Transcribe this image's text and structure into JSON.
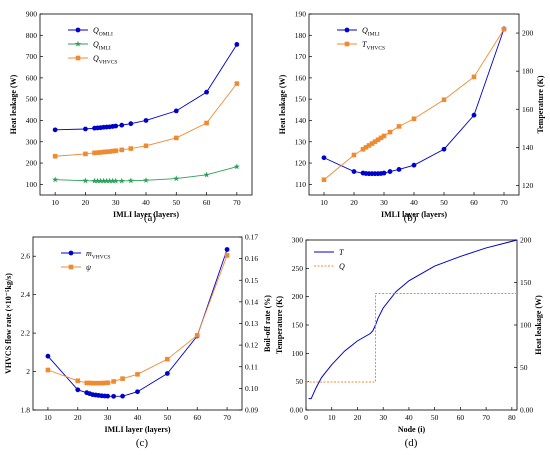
{
  "chart_data": [
    {
      "id": "a",
      "type": "line",
      "caption": "(a)",
      "xlabel": "IMLI layer (layers)",
      "ylabel": "Heat leakage (W)",
      "xlim": [
        5,
        75
      ],
      "ylim": [
        50,
        900
      ],
      "xticks": [
        10,
        20,
        30,
        40,
        50,
        60,
        70
      ],
      "yticks": [
        100,
        200,
        300,
        400,
        500,
        600,
        700,
        800,
        900
      ],
      "legend_position": "top-left",
      "series": [
        {
          "name": "Q",
          "sub": "OMLI",
          "axis": "left",
          "color": "#0000cc",
          "marker": "circle",
          "x": [
            10,
            20,
            23,
            24,
            25,
            26,
            27,
            28,
            29,
            30,
            32,
            35,
            40,
            50,
            60,
            70
          ],
          "y": [
            356,
            360,
            364,
            365,
            366,
            368,
            369,
            370,
            372,
            374,
            378,
            385,
            400,
            445,
            533,
            757
          ]
        },
        {
          "name": "Q",
          "sub": "IMLI",
          "axis": "left",
          "color": "#2ca05a",
          "marker": "star",
          "x": [
            10,
            20,
            23,
            24,
            25,
            26,
            27,
            28,
            29,
            30,
            32,
            35,
            40,
            50,
            60,
            70
          ],
          "y": [
            122,
            117,
            116,
            116,
            116,
            116,
            116,
            116,
            116,
            116,
            116,
            117,
            119,
            127,
            145,
            183
          ]
        },
        {
          "name": "Q",
          "sub": "VHVCS",
          "axis": "left",
          "color": "#f08a30",
          "marker": "square",
          "x": [
            10,
            20,
            23,
            24,
            25,
            26,
            27,
            28,
            29,
            30,
            32,
            35,
            40,
            50,
            60,
            70
          ],
          "y": [
            232,
            243,
            248,
            249,
            250,
            252,
            253,
            254,
            256,
            258,
            262,
            268,
            281,
            318,
            388,
            573
          ]
        }
      ]
    },
    {
      "id": "b",
      "type": "line",
      "caption": "(b)",
      "xlabel": "IMLI layer (layers)",
      "ylabel": "Heat leakage (W)",
      "ylabel_right": "Temperature (K)",
      "xlim": [
        5,
        75
      ],
      "ylim": [
        105,
        190
      ],
      "ylim_right": [
        115,
        210
      ],
      "xticks": [
        10,
        20,
        30,
        40,
        50,
        60,
        70
      ],
      "yticks": [
        110,
        120,
        130,
        140,
        150,
        160,
        170,
        180,
        190
      ],
      "yticks_right": [
        120,
        140,
        160,
        180,
        200
      ],
      "legend_position": "top-left",
      "series": [
        {
          "name": "Q",
          "sub": "IMLI",
          "axis": "left",
          "color": "#0000cc",
          "marker": "circle",
          "x": [
            10,
            20,
            23,
            24,
            25,
            26,
            27,
            28,
            29,
            30,
            32,
            35,
            40,
            50,
            60,
            70
          ],
          "y": [
            122.5,
            116,
            115.3,
            115.1,
            115,
            115,
            115,
            115,
            115.1,
            115.3,
            116,
            117,
            119,
            126.5,
            142.5,
            183
          ]
        },
        {
          "name": "T",
          "sub": "VHVCS",
          "axis": "right",
          "color": "#f08a30",
          "marker": "square",
          "x": [
            10,
            20,
            23,
            24,
            25,
            26,
            27,
            28,
            29,
            30,
            32,
            35,
            40,
            50,
            60,
            70
          ],
          "y": [
            123,
            136,
            139,
            140,
            141,
            142,
            143,
            144,
            145,
            146,
            148,
            151,
            155,
            165,
            177,
            202
          ]
        }
      ]
    },
    {
      "id": "c",
      "type": "line",
      "caption": "(c)",
      "xlabel": "IMLI layer (layers)",
      "ylabel": "VHVCS flow rate (×10⁻⁵kg/s)",
      "ylabel_right": "Boil-off rate (%)",
      "xlim": [
        5,
        75
      ],
      "ylim": [
        1.8,
        2.7
      ],
      "ylim_right": [
        0.09,
        0.17
      ],
      "xticks": [
        10,
        20,
        30,
        40,
        50,
        60,
        70
      ],
      "yticks": [
        1.8,
        2.0,
        2.2,
        2.4,
        2.6
      ],
      "yticks_right": [
        0.09,
        0.1,
        0.11,
        0.12,
        0.13,
        0.14,
        0.15,
        0.16,
        0.17
      ],
      "legend_position": "top-left",
      "series": [
        {
          "name": "m",
          "sub": "VHVCS",
          "axis": "left",
          "color": "#0000cc",
          "marker": "circle",
          "x": [
            10,
            20,
            23,
            24,
            25,
            26,
            27,
            28,
            29,
            30,
            32,
            35,
            40,
            50,
            60,
            70
          ],
          "y": [
            2.08,
            1.905,
            1.89,
            1.885,
            1.88,
            1.878,
            1.876,
            1.874,
            1.873,
            1.872,
            1.871,
            1.872,
            1.895,
            1.99,
            2.185,
            2.635
          ]
        },
        {
          "name": "ψ",
          "sub": "",
          "axis": "right",
          "color": "#f08a30",
          "marker": "square",
          "x": [
            10,
            20,
            23,
            24,
            25,
            26,
            27,
            28,
            29,
            30,
            32,
            35,
            40,
            50,
            60,
            70
          ],
          "y": [
            0.1085,
            0.1035,
            0.1025,
            0.1025,
            0.1024,
            0.1024,
            0.1024,
            0.1024,
            0.1025,
            0.1026,
            0.1032,
            0.1045,
            0.1065,
            0.1135,
            0.1245,
            0.1615
          ]
        }
      ]
    },
    {
      "id": "d",
      "type": "line",
      "caption": "(d)",
      "xlabel": "Node (i)",
      "ylabel": "Temperature (K)",
      "ylabel_right": "Heat leakage (W)",
      "xlim": [
        0,
        82
      ],
      "ylim": [
        0,
        300
      ],
      "ylim_right": [
        0,
        200
      ],
      "xticks": [
        0,
        10,
        20,
        30,
        40,
        50,
        60,
        70,
        80
      ],
      "yticks": [
        0,
        50,
        100,
        150,
        200,
        250,
        300
      ],
      "yticks_right": [
        0,
        50,
        100,
        150,
        200
      ],
      "legend_position": "top-left",
      "series": [
        {
          "name": "T",
          "sub": "",
          "axis": "left",
          "color": "#0000cc",
          "marker": "none",
          "style": "solid",
          "x": [
            1,
            2,
            4,
            6,
            10,
            15,
            20,
            25,
            26,
            27,
            28,
            30,
            35,
            40,
            50,
            60,
            70,
            82
          ],
          "y": [
            20,
            20,
            40,
            57,
            80,
            104,
            122,
            135,
            140,
            150,
            162,
            180,
            209,
            228,
            254,
            271,
            286,
            300
          ]
        },
        {
          "name": "Q",
          "sub": "",
          "axis": "right",
          "color": "#f08a30",
          "marker": "none",
          "style": "dashed",
          "step": true,
          "x": [
            0,
            27,
            27,
            82
          ],
          "y": [
            33,
            33,
            137,
            137
          ]
        }
      ]
    }
  ]
}
